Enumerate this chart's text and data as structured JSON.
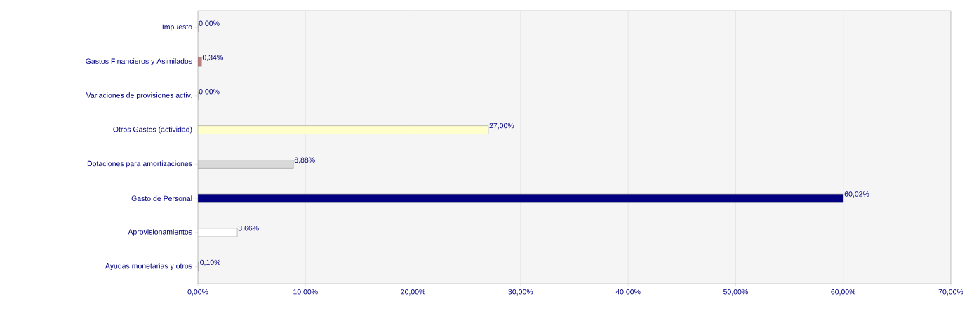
{
  "chart_data": {
    "type": "bar",
    "orientation": "horizontal",
    "categories": [
      "Impuesto",
      "Gastos Financieros y Asimilados",
      "Variaciones de provisiones activ.",
      "Otros Gastos (actividad)",
      "Dotaciones para amortizaciones",
      "Gasto de Personal",
      "Aprovisionamientos",
      "Ayudas monetarias y otros"
    ],
    "values": [
      0.0,
      0.34,
      0.0,
      27.0,
      8.88,
      60.02,
      3.66,
      0.1
    ],
    "value_labels": [
      "0,00%",
      "0,34%",
      "0,00%",
      "27,00%",
      "8,88%",
      "60,02%",
      "3,66%",
      "0,10%"
    ],
    "colors": [
      "#404040",
      "#c08080",
      "#800000",
      "#ffffcc",
      "#d9d9d9",
      "#000080",
      "#ffffff",
      "#c0c0c0"
    ],
    "xlim": [
      0,
      70
    ],
    "xticks": [
      {
        "value": 0,
        "label": "0,00%"
      },
      {
        "value": 10,
        "label": "10,00%"
      },
      {
        "value": 20,
        "label": "20,00%"
      },
      {
        "value": 30,
        "label": "30,00%"
      },
      {
        "value": 40,
        "label": "40,00%"
      },
      {
        "value": 50,
        "label": "50,00%"
      },
      {
        "value": 60,
        "label": "60,00%"
      },
      {
        "value": 70,
        "label": "70,00%"
      }
    ],
    "grid": "x"
  }
}
